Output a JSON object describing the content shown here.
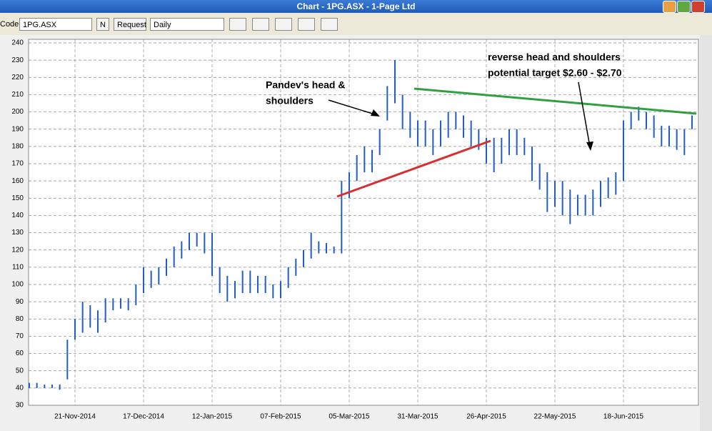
{
  "window": {
    "title": "Chart - 1PG.ASX - 1-Page Ltd"
  },
  "toolbar": {
    "code_label": "Code:",
    "code": "1PG.ASX",
    "n_button": "N",
    "request_button": "Request",
    "period": "Daily"
  },
  "chart_data": {
    "type": "range-bar",
    "categories": [
      null,
      null,
      null,
      null,
      null,
      null,
      "21-Nov-2014",
      null,
      null,
      null,
      null,
      null,
      null,
      null,
      null,
      "17-Dec-2014",
      null,
      null,
      null,
      null,
      null,
      null,
      null,
      null,
      "12-Jan-2015",
      null,
      null,
      null,
      null,
      null,
      null,
      null,
      null,
      "07-Feb-2015",
      null,
      null,
      null,
      null,
      null,
      null,
      null,
      null,
      "05-Mar-2015",
      null,
      null,
      null,
      null,
      null,
      null,
      null,
      null,
      "31-Mar-2015",
      null,
      null,
      null,
      null,
      null,
      null,
      null,
      null,
      "26-Apr-2015",
      null,
      null,
      null,
      null,
      null,
      null,
      null,
      null,
      "22-May-2015",
      null,
      null,
      null,
      null,
      null,
      null,
      null,
      null,
      "18-Jun-2015",
      null,
      null,
      null,
      null,
      null,
      null,
      null,
      null,
      null
    ],
    "series": [
      {
        "color": "#1f5fc8",
        "low": [
          40,
          40,
          40,
          40,
          39,
          45,
          68,
          72,
          75,
          72,
          78,
          85,
          86,
          85,
          88,
          95,
          98,
          100,
          105,
          110,
          115,
          120,
          122,
          118,
          105,
          95,
          90,
          92,
          95,
          95,
          95,
          95,
          92,
          92,
          98,
          105,
          110,
          115,
          118,
          118,
          118,
          118,
          150,
          160,
          165,
          165,
          175,
          195,
          205,
          190,
          185,
          180,
          180,
          175,
          180,
          185,
          190,
          185,
          180,
          178,
          170,
          165,
          170,
          175,
          175,
          175,
          160,
          155,
          142,
          145,
          140,
          135,
          140,
          140,
          140,
          145,
          150,
          152,
          160,
          190,
          195,
          190,
          185,
          180,
          180,
          178,
          175,
          190
        ],
        "high": [
          43,
          43,
          42,
          42,
          42,
          68,
          80,
          90,
          88,
          85,
          92,
          92,
          92,
          92,
          100,
          110,
          108,
          110,
          115,
          122,
          125,
          130,
          130,
          130,
          130,
          110,
          105,
          102,
          108,
          108,
          105,
          105,
          100,
          102,
          110,
          115,
          120,
          130,
          125,
          124,
          122,
          160,
          165,
          175,
          180,
          178,
          190,
          215,
          230,
          210,
          200,
          195,
          195,
          190,
          195,
          200,
          200,
          198,
          195,
          190,
          185,
          185,
          185,
          190,
          190,
          185,
          180,
          170,
          165,
          160,
          160,
          155,
          152,
          152,
          155,
          160,
          162,
          165,
          195,
          200,
          203,
          200,
          198,
          192,
          192,
          190,
          190,
          198
        ]
      }
    ],
    "ylim": [
      30,
      240
    ],
    "yticks": [
      30,
      40,
      50,
      60,
      70,
      80,
      90,
      100,
      110,
      120,
      130,
      140,
      150,
      160,
      170,
      180,
      190,
      200,
      210,
      220,
      230,
      240
    ],
    "grid": true,
    "annotations": [
      "Pandev's head &",
      "shoulders",
      "reverse head and shoulders",
      "potential target $2.60 - $2.70"
    ]
  }
}
